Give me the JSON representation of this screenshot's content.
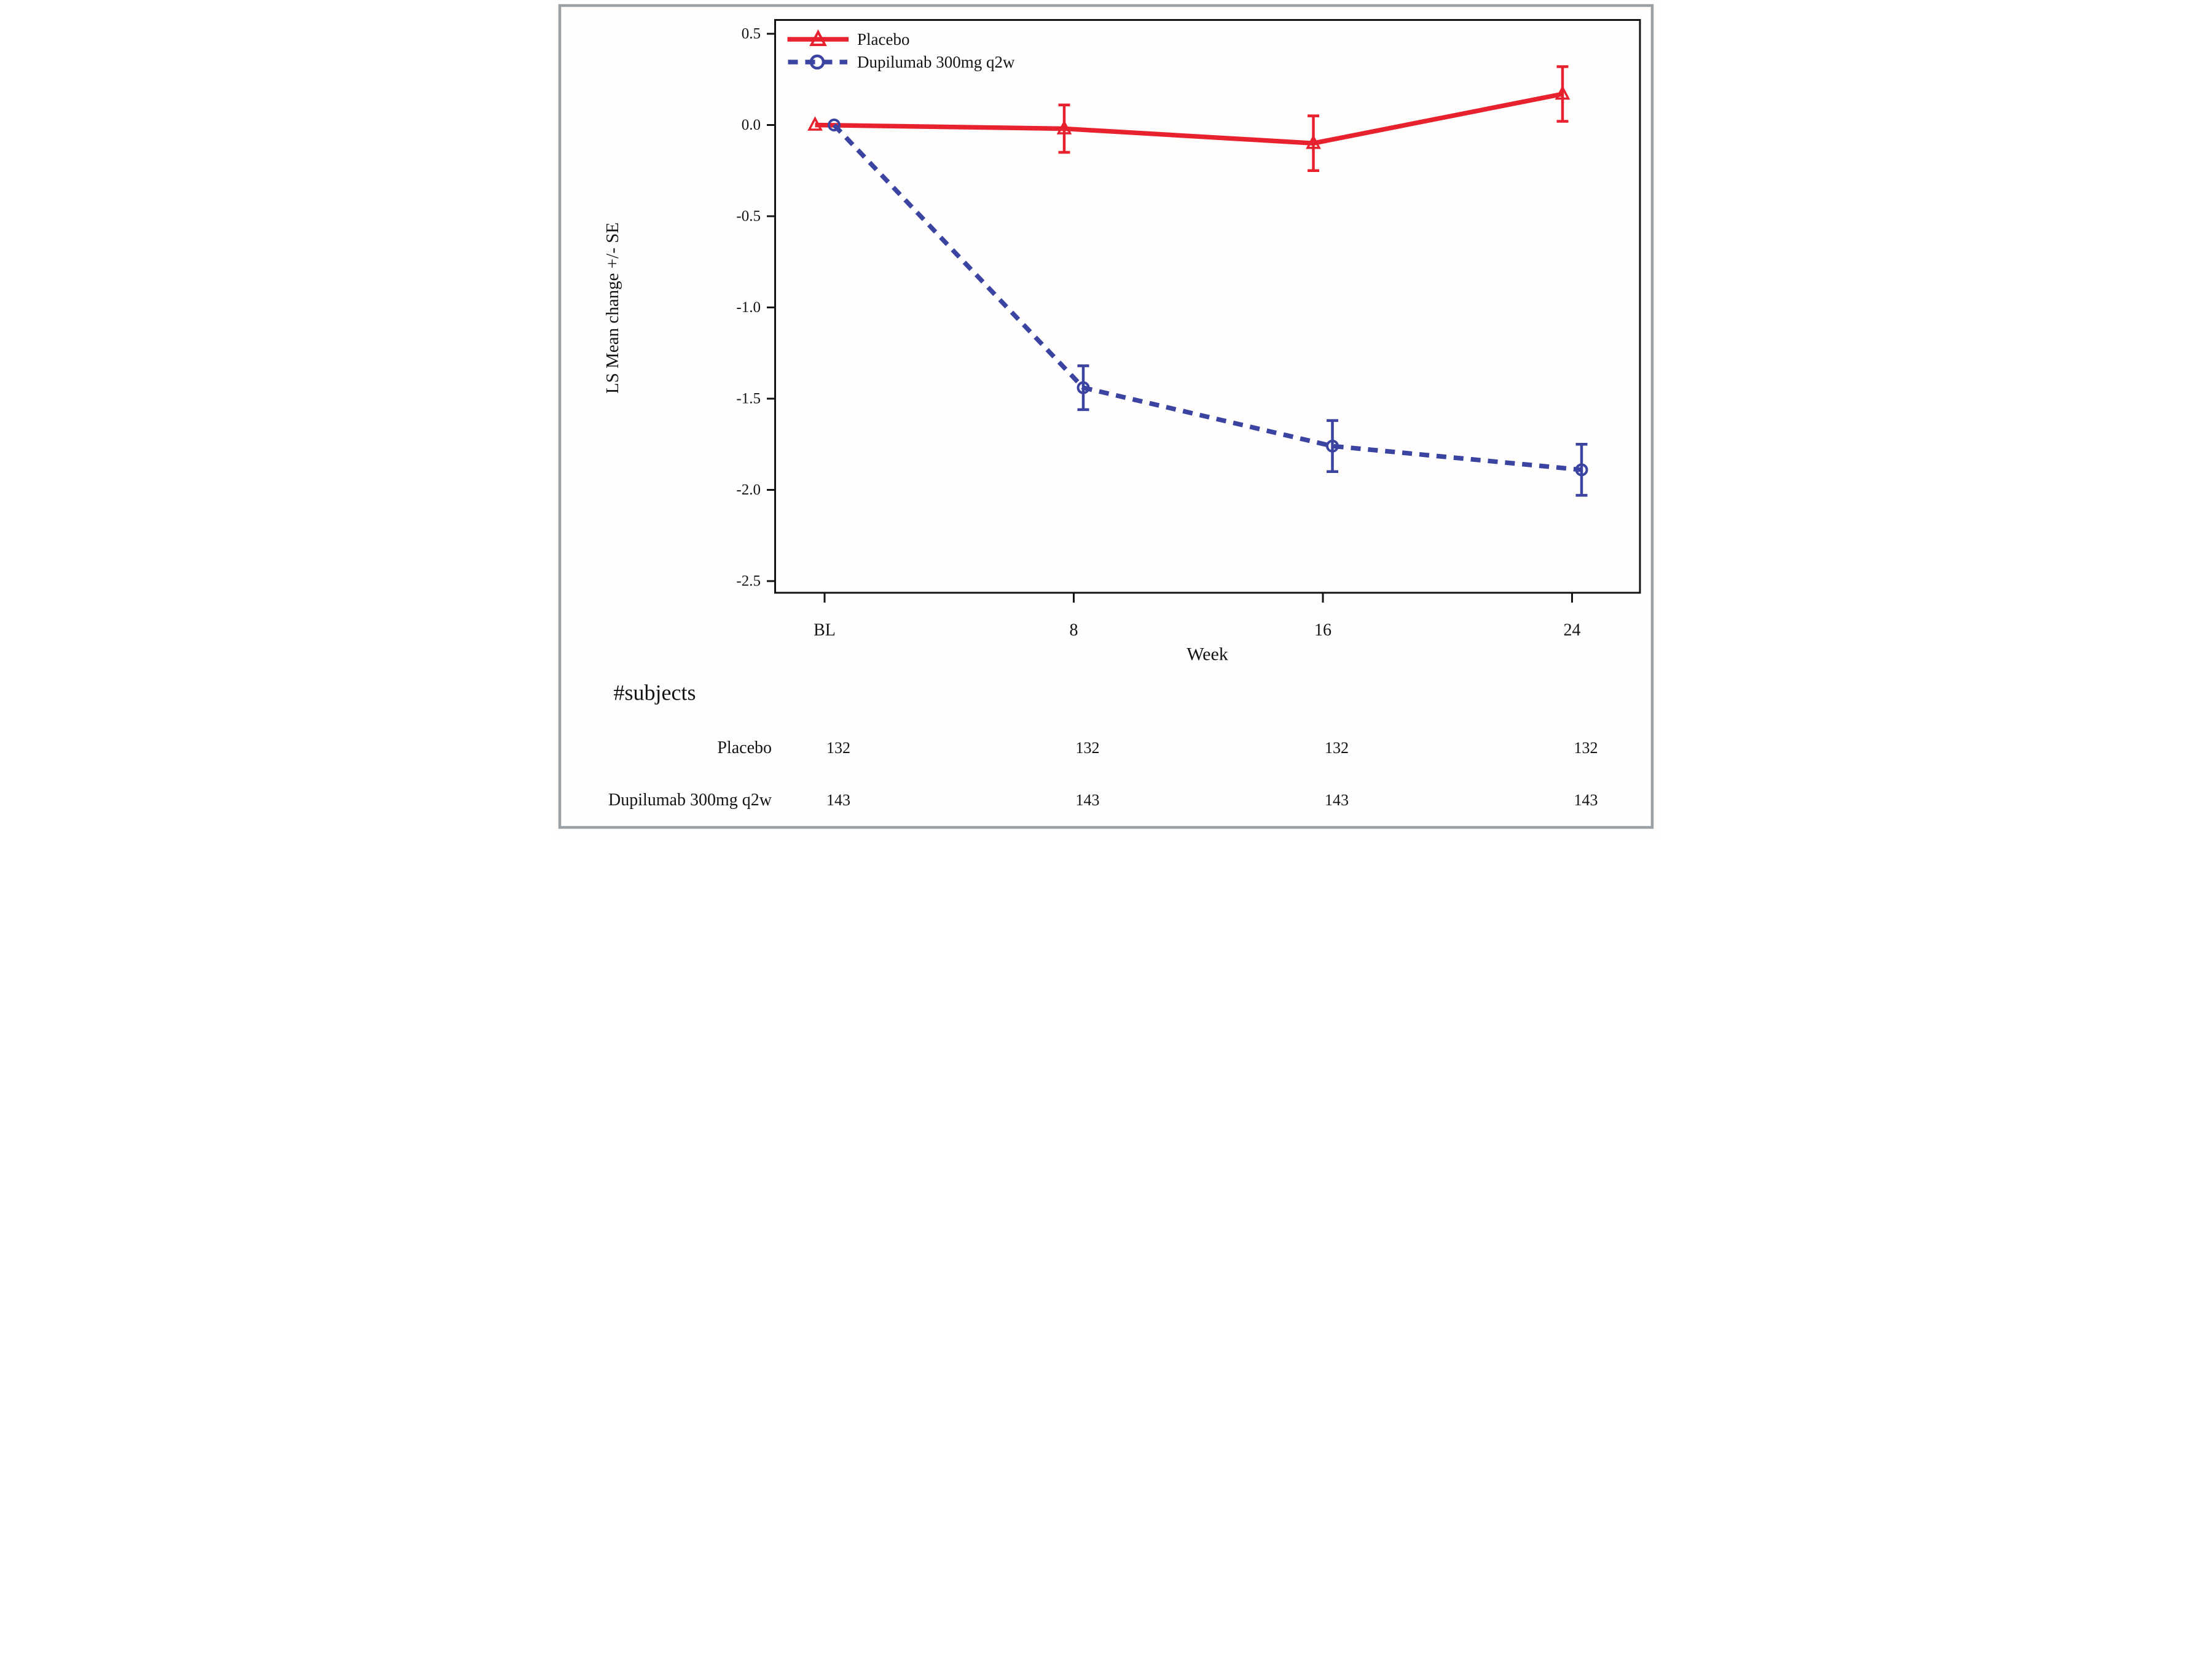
{
  "figure": {
    "y_axis_label": "LS Mean change +/- SE",
    "x_axis_label": "Week",
    "colors": {
      "placebo_red": "#e8212e",
      "dupilumab_blue": "#3b44a0",
      "text": "#141414",
      "plot_frame": "#141414",
      "outer_border": "#9aa0a4"
    }
  },
  "chart_data": {
    "type": "line",
    "title": "",
    "xlabel": "Week",
    "ylabel": "LS Mean change +/- SE",
    "x_categories": [
      "BL",
      "8",
      "16",
      "24"
    ],
    "x_values_weeks": [
      0,
      8,
      16,
      24
    ],
    "ylim": [
      -2.5,
      0.5
    ],
    "y_tick_labels": [
      "0.5",
      "0.0",
      "-0.5",
      "-1.0",
      "-1.5",
      "-2.0",
      "-2.5"
    ],
    "y_tick_values": [
      0.5,
      0.0,
      -0.5,
      -1.0,
      -1.5,
      -2.0,
      -2.5
    ],
    "grid": "off",
    "legend_position": "top-left-inside",
    "series": [
      {
        "name": "Placebo",
        "color": "#e8212e",
        "line_style": "solid",
        "marker": "open-triangle",
        "values": [
          0.0,
          -0.02,
          -0.1,
          0.17
        ],
        "se": [
          0.0,
          0.13,
          0.15,
          0.15
        ]
      },
      {
        "name": "Dupilumab 300mg q2w",
        "color": "#3b44a0",
        "line_style": "dotted",
        "marker": "open-circle",
        "values": [
          0.0,
          -1.44,
          -1.76,
          -1.89
        ],
        "se": [
          0.0,
          0.12,
          0.14,
          0.14
        ]
      }
    ],
    "subjects_table": {
      "heading": "#subjects",
      "rows": [
        {
          "label": "Placebo",
          "counts": [
            "132",
            "132",
            "132",
            "132"
          ]
        },
        {
          "label": "Dupilumab 300mg q2w",
          "counts": [
            "143",
            "143",
            "143",
            "143"
          ]
        }
      ]
    }
  }
}
